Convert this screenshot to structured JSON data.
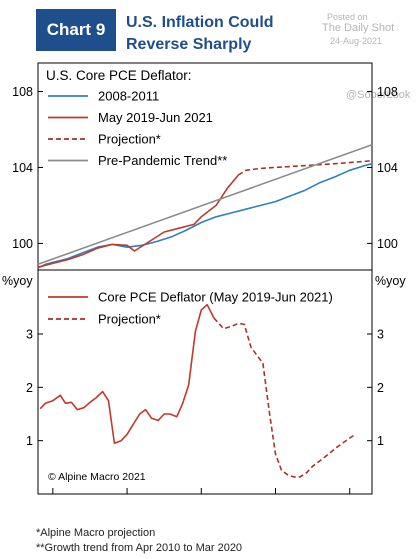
{
  "header": {
    "badge": "Chart 9",
    "title_line1": "U.S. Inflation Could",
    "title_line2": "Reverse Sharply"
  },
  "watermark": {
    "posted_on": "Posted on",
    "site": "The Daily Shot",
    "date": "24-Aug-2021",
    "handle": "@SoberLook"
  },
  "chart_data": [
    {
      "type": "line",
      "title": "U.S. Core PCE Deflator:",
      "legend_position": "top-left",
      "ylim": [
        98.6,
        109.5
      ],
      "yticks": [
        100,
        104,
        108
      ],
      "xlim": [
        2018.8,
        2023.3
      ],
      "series": [
        {
          "name": "2008-2011",
          "color": "#2f7fc1",
          "style": "solid",
          "points": [
            [
              2018.8,
              98.7
            ],
            [
              2018.9,
              98.9
            ],
            [
              2019.0,
              99.0
            ],
            [
              2019.2,
              99.2
            ],
            [
              2019.4,
              99.5
            ],
            [
              2019.6,
              99.8
            ],
            [
              2019.8,
              99.95
            ],
            [
              2020.0,
              99.8
            ],
            [
              2020.2,
              99.9
            ],
            [
              2020.4,
              100.1
            ],
            [
              2020.6,
              100.35
            ],
            [
              2020.8,
              100.7
            ],
            [
              2021.0,
              101.1
            ],
            [
              2021.2,
              101.4
            ],
            [
              2021.4,
              101.6
            ],
            [
              2021.6,
              101.8
            ],
            [
              2021.8,
              102.0
            ],
            [
              2022.0,
              102.2
            ],
            [
              2022.2,
              102.5
            ],
            [
              2022.4,
              102.8
            ],
            [
              2022.6,
              103.2
            ],
            [
              2022.8,
              103.5
            ],
            [
              2023.0,
              103.85
            ],
            [
              2023.2,
              104.1
            ],
            [
              2023.3,
              104.2
            ]
          ]
        },
        {
          "name": "May 2019-Jun 2021",
          "color": "#c0392b",
          "style": "solid",
          "points": [
            [
              2018.8,
              98.75
            ],
            [
              2019.0,
              98.95
            ],
            [
              2019.2,
              99.15
            ],
            [
              2019.4,
              99.4
            ],
            [
              2019.6,
              99.75
            ],
            [
              2019.8,
              99.95
            ],
            [
              2020.0,
              99.9
            ],
            [
              2020.1,
              99.6
            ],
            [
              2020.3,
              100.1
            ],
            [
              2020.5,
              100.6
            ],
            [
              2020.7,
              100.8
            ],
            [
              2020.9,
              101.0
            ],
            [
              2021.0,
              101.4
            ],
            [
              2021.2,
              102.0
            ],
            [
              2021.35,
              102.9
            ],
            [
              2021.5,
              103.6
            ]
          ]
        },
        {
          "name": "Projection*",
          "color": "#a93226",
          "style": "dashed",
          "points": [
            [
              2021.5,
              103.6
            ],
            [
              2021.6,
              103.85
            ],
            [
              2021.8,
              103.95
            ],
            [
              2022.0,
              104.0
            ],
            [
              2022.4,
              104.1
            ],
            [
              2022.8,
              104.2
            ],
            [
              2023.3,
              104.35
            ]
          ]
        },
        {
          "name": "Pre-Pandemic Trend**",
          "color": "#8c8c8c",
          "style": "solid",
          "points": [
            [
              2018.8,
              98.9
            ],
            [
              2023.3,
              105.2
            ]
          ]
        }
      ]
    },
    {
      "type": "line",
      "ylabel": "%yoy",
      "ylim": [
        0,
        4.2
      ],
      "yticks": [
        1,
        2,
        3
      ],
      "xlim": [
        2018.8,
        2023.3
      ],
      "xticks": [
        2019,
        2020,
        2021,
        2022,
        2023
      ],
      "legend_position": "top-left",
      "annotation": "© Alpine Macro 2021",
      "series": [
        {
          "name": "Core PCE Deflator (May 2019-Jun 2021)",
          "color": "#c0392b",
          "style": "solid",
          "points": [
            [
              2018.83,
              1.6
            ],
            [
              2018.9,
              1.7
            ],
            [
              2019.0,
              1.75
            ],
            [
              2019.1,
              1.85
            ],
            [
              2019.17,
              1.7
            ],
            [
              2019.25,
              1.72
            ],
            [
              2019.33,
              1.58
            ],
            [
              2019.42,
              1.62
            ],
            [
              2019.5,
              1.72
            ],
            [
              2019.58,
              1.8
            ],
            [
              2019.67,
              1.92
            ],
            [
              2019.75,
              1.75
            ],
            [
              2019.83,
              0.95
            ],
            [
              2019.92,
              1.0
            ],
            [
              2020.0,
              1.12
            ],
            [
              2020.08,
              1.3
            ],
            [
              2020.17,
              1.5
            ],
            [
              2020.25,
              1.58
            ],
            [
              2020.33,
              1.42
            ],
            [
              2020.42,
              1.38
            ],
            [
              2020.5,
              1.5
            ],
            [
              2020.58,
              1.5
            ],
            [
              2020.67,
              1.45
            ],
            [
              2020.75,
              1.7
            ],
            [
              2020.83,
              2.05
            ],
            [
              2020.92,
              3.05
            ],
            [
              2021.0,
              3.45
            ],
            [
              2021.08,
              3.55
            ],
            [
              2021.17,
              3.3
            ]
          ]
        },
        {
          "name": "Projection*",
          "color": "#a93226",
          "style": "dashed",
          "points": [
            [
              2021.17,
              3.3
            ],
            [
              2021.3,
              3.1
            ],
            [
              2021.42,
              3.15
            ],
            [
              2021.5,
              3.2
            ],
            [
              2021.58,
              3.18
            ],
            [
              2021.67,
              2.75
            ],
            [
              2021.75,
              2.6
            ],
            [
              2021.83,
              2.45
            ],
            [
              2021.92,
              1.5
            ],
            [
              2022.0,
              0.75
            ],
            [
              2022.08,
              0.45
            ],
            [
              2022.17,
              0.35
            ],
            [
              2022.25,
              0.32
            ],
            [
              2022.33,
              0.32
            ],
            [
              2022.42,
              0.4
            ],
            [
              2022.5,
              0.52
            ],
            [
              2022.67,
              0.7
            ],
            [
              2022.83,
              0.88
            ],
            [
              2023.0,
              1.05
            ],
            [
              2023.08,
              1.12
            ]
          ]
        }
      ]
    }
  ],
  "footnotes": {
    "line1": "*Alpine Macro projection",
    "line2": "**Growth trend from Apr 2010 to Mar 2020"
  }
}
